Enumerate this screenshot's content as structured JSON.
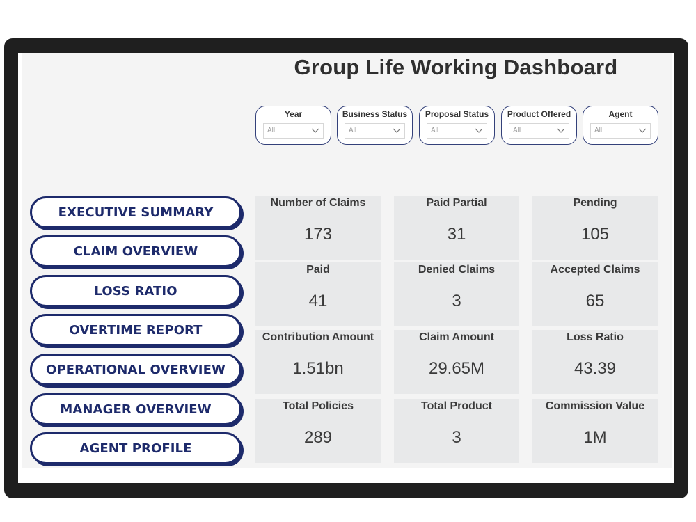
{
  "dashboard": {
    "title": "Group Life Working Dashboard"
  },
  "slicers": [
    {
      "label": "Year",
      "value": "All"
    },
    {
      "label": "Business Status",
      "value": "All"
    },
    {
      "label": "Proposal Status",
      "value": "All"
    },
    {
      "label": "Product Offered",
      "value": "All"
    },
    {
      "label": "Agent",
      "value": "All"
    }
  ],
  "nav": [
    {
      "label": "EXECUTIVE SUMMARY"
    },
    {
      "label": "CLAIM OVERVIEW"
    },
    {
      "label": "LOSS RATIO"
    },
    {
      "label": "OVERTIME REPORT"
    },
    {
      "label": "OPERATIONAL OVERVIEW"
    },
    {
      "label": "MANAGER OVERVIEW"
    },
    {
      "label": "AGENT PROFILE"
    }
  ],
  "cards": [
    {
      "label": "Number of Claims",
      "value": "173"
    },
    {
      "label": "Paid Partial",
      "value": "31"
    },
    {
      "label": "Pending",
      "value": "105"
    },
    {
      "label": "Paid",
      "value": "41"
    },
    {
      "label": "Denied Claims",
      "value": "3"
    },
    {
      "label": "Accepted Claims",
      "value": "65"
    },
    {
      "label": "Contribution Amount",
      "value": "1.51bn"
    },
    {
      "label": "Claim Amount",
      "value": "29.65M"
    },
    {
      "label": "Loss Ratio",
      "value": "43.39"
    },
    {
      "label": "Total Policies",
      "value": "289"
    },
    {
      "label": "Total Product",
      "value": "3"
    },
    {
      "label": "Commission Value",
      "value": "1M"
    }
  ],
  "icons": {
    "dropdown": "chevron-down-icon"
  },
  "colors": {
    "accent": "#1d2a6b",
    "card_bg": "#e8e9ea",
    "frame": "#1f1f1f"
  }
}
